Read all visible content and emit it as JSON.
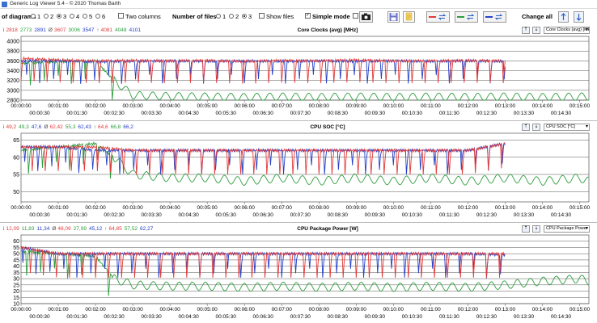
{
  "window": {
    "title": "Generic Log Viewer 5.4 - © 2020 Thomas Barth"
  },
  "toolbar": {
    "diagrams_label": "of diagrams",
    "diagram_options": [
      "1",
      "2",
      "3",
      "4",
      "5",
      "6"
    ],
    "diagrams_selected": "3",
    "two_columns_label": "Two columns",
    "files_label": "Number of files",
    "file_options": [
      "1",
      "2",
      "3"
    ],
    "files_selected": "3",
    "show_files_label": "Show files",
    "simple_mode_label": "Simple mode",
    "change_all_label": "Change all",
    "colors": {
      "red": "#e23a3a",
      "green": "#2e9e3e",
      "blue": "#2440c8"
    }
  },
  "panels": [
    {
      "title": "Core Clocks (avg) [MHz]",
      "select": "Core Clocks (avg) [MHz]",
      "legend": [
        {
          "prefix": "i",
          "values": [
            "2818",
            "2773",
            "2891"
          ]
        },
        {
          "prefix": "Ø",
          "values": [
            "3607",
            "3006",
            "3547"
          ]
        },
        {
          "prefix": "↑",
          "values": [
            "4081",
            "4048",
            "4101"
          ]
        }
      ],
      "xticks_top": [
        "00:00:00",
        "00:01:00",
        "00:02:00",
        "00:03:00",
        "00:04:00",
        "00:05:00",
        "00:06:00",
        "00:07:00",
        "00:08:00",
        "00:09:00",
        "00:10:00",
        "00:11:00",
        "00:12:00",
        "00:13:00",
        "00:14:00",
        "00:15:00"
      ],
      "xticks_bottom": [
        "00:00:30",
        "00:01:30",
        "00:02:30",
        "00:03:30",
        "00:04:30",
        "00:05:30",
        "00:06:30",
        "00:07:30",
        "00:08:30",
        "00:09:30",
        "00:10:30",
        "00:11:30",
        "00:12:30",
        "00:13:30",
        "00:14:30"
      ]
    },
    {
      "title": "CPU SOC [°C]",
      "select": "CPU SOC [°C]",
      "legend": [
        {
          "prefix": "i",
          "values": [
            "49,2",
            "49,3",
            "47,6"
          ]
        },
        {
          "prefix": "Ø",
          "values": [
            "62,42",
            "55,3",
            "62,43"
          ]
        },
        {
          "prefix": "↑",
          "values": [
            "64,6",
            "66,8",
            "66,2"
          ]
        }
      ],
      "xticks_top": [
        "00:00:00",
        "00:01:00",
        "00:02:00",
        "00:03:00",
        "00:04:00",
        "00:05:00",
        "00:06:00",
        "00:07:00",
        "00:08:00",
        "00:09:00",
        "00:10:00",
        "00:11:00",
        "00:12:00",
        "00:13:00",
        "00:14:00",
        "00:15:00"
      ],
      "xticks_bottom": [
        "00:00:30",
        "00:01:30",
        "00:02:30",
        "00:03:30",
        "00:04:30",
        "00:05:30",
        "00:06:30",
        "00:07:30",
        "00:08:30",
        "00:09:30",
        "00:10:30",
        "00:11:30",
        "00:12:30",
        "00:13:30",
        "00:14:30"
      ]
    },
    {
      "title": "CPU Package Power [W]",
      "select": "CPU Package Power [W]",
      "legend": [
        {
          "prefix": "i",
          "values": [
            "12,09",
            "11,83",
            "11,34"
          ]
        },
        {
          "prefix": "Ø",
          "values": [
            "48,09",
            "27,99",
            "45,12"
          ]
        },
        {
          "prefix": "↑",
          "values": [
            "64,85",
            "57,52",
            "62,27"
          ]
        }
      ],
      "xticks_top": [
        "00:00:00",
        "00:01:00",
        "00:02:00",
        "00:03:00",
        "00:04:00",
        "00:05:00",
        "00:06:00",
        "00:07:00",
        "00:08:00",
        "00:09:00",
        "00:10:00",
        "00:11:00",
        "00:12:00",
        "00:13:00",
        "00:14:00",
        "00:15:00"
      ],
      "xticks_bottom": [
        "00:00:30",
        "00:01:30",
        "00:02:30",
        "00:03:30",
        "00:04:30",
        "00:05:30",
        "00:06:30",
        "00:07:30",
        "00:08:30",
        "00:09:30",
        "00:10:30",
        "00:11:30",
        "00:12:30",
        "00:13:30",
        "00:14:30"
      ]
    }
  ],
  "chart_data": [
    {
      "type": "line",
      "title": "Core Clocks (avg) [MHz]",
      "ylim": [
        2800,
        4100
      ],
      "yticks": [
        2800,
        3000,
        3200,
        3400,
        3600,
        3800,
        4000
      ],
      "xlim_seconds": [
        0,
        915
      ],
      "series": [
        {
          "color": "#e23a3a",
          "x": [
            0,
            60,
            120,
            180,
            240,
            300,
            360,
            420,
            480,
            540,
            600,
            660,
            720,
            780
          ],
          "y": [
            3650,
            3620,
            3600,
            3610,
            3600,
            3610,
            3590,
            3610,
            3600,
            3620,
            3600,
            3600,
            3610,
            3600
          ]
        },
        {
          "color": "#2e9e3e",
          "x": [
            0,
            60,
            120,
            150,
            180,
            240,
            300,
            360,
            420,
            480,
            540,
            600,
            660,
            720,
            780,
            840,
            900,
            915
          ],
          "y": [
            3550,
            3580,
            3600,
            3200,
            2900,
            2880,
            2870,
            2860,
            2870,
            2860,
            2870,
            2860,
            2870,
            2860,
            2870,
            2860,
            2870,
            2870
          ]
        },
        {
          "color": "#2440c8",
          "x": [
            0,
            60,
            120,
            180,
            240,
            300,
            360,
            420,
            480,
            540,
            600,
            660,
            720,
            780
          ],
          "y": [
            3600,
            3600,
            3580,
            3590,
            3600,
            3590,
            3600,
            3590,
            3600,
            3590,
            3600,
            3590,
            3600,
            3590
          ]
        }
      ]
    },
    {
      "type": "line",
      "title": "CPU SOC [°C]",
      "ylim": [
        47,
        67
      ],
      "yticks": [
        50,
        55,
        60,
        65
      ],
      "xlim_seconds": [
        0,
        915
      ],
      "series": [
        {
          "color": "#e23a3a",
          "x": [
            0,
            60,
            120,
            180,
            240,
            300,
            360,
            420,
            480,
            540,
            600,
            660,
            720,
            780
          ],
          "y": [
            63,
            63,
            63,
            62,
            62,
            62,
            62,
            62,
            62,
            62,
            62,
            62,
            62,
            64
          ]
        },
        {
          "color": "#2e9e3e",
          "x": [
            0,
            60,
            120,
            150,
            180,
            240,
            300,
            360,
            420,
            480,
            540,
            600,
            660,
            720,
            780,
            840,
            900,
            915
          ],
          "y": [
            62,
            63,
            64,
            60,
            55,
            54,
            54,
            53,
            54,
            53,
            54,
            53,
            54,
            53,
            54,
            53,
            54,
            53
          ]
        },
        {
          "color": "#2440c8",
          "x": [
            0,
            60,
            120,
            180,
            240,
            300,
            360,
            420,
            480,
            540,
            600,
            660,
            720,
            780
          ],
          "y": [
            63,
            63,
            62,
            62,
            62,
            62,
            62,
            62,
            62,
            62,
            62,
            62,
            62,
            64
          ]
        }
      ]
    },
    {
      "type": "line",
      "title": "CPU Package Power [W]",
      "ylim": [
        10,
        65
      ],
      "yticks": [
        10,
        15,
        20,
        25,
        30,
        35,
        40,
        45,
        50,
        55,
        60
      ],
      "xlim_seconds": [
        0,
        915
      ],
      "series": [
        {
          "color": "#e23a3a",
          "x": [
            0,
            60,
            120,
            180,
            240,
            300,
            360,
            420,
            480,
            540,
            600,
            660,
            720,
            780
          ],
          "y": [
            55,
            50,
            50,
            50,
            50,
            50,
            50,
            50,
            50,
            50,
            50,
            50,
            50,
            50
          ]
        },
        {
          "color": "#2e9e3e",
          "x": [
            0,
            60,
            120,
            150,
            180,
            240,
            300,
            360,
            420,
            480,
            540,
            600,
            660,
            720,
            780,
            840,
            900,
            915
          ],
          "y": [
            52,
            50,
            48,
            30,
            25,
            24,
            24,
            23,
            24,
            23,
            24,
            23,
            24,
            23,
            25,
            28,
            30,
            28
          ]
        },
        {
          "color": "#2440c8",
          "x": [
            0,
            60,
            120,
            180,
            240,
            300,
            360,
            420,
            480,
            540,
            600,
            660,
            720,
            780
          ],
          "y": [
            55,
            50,
            50,
            50,
            50,
            50,
            50,
            50,
            50,
            50,
            50,
            50,
            50,
            49
          ]
        }
      ]
    }
  ]
}
